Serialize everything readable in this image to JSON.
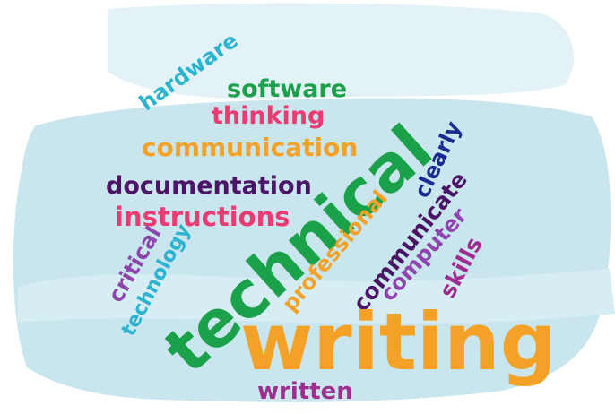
{
  "colors": {
    "wash": "#c9e6ee",
    "wash_light": "#e3f2f6",
    "teal": "#2bb3cf",
    "green": "#1ba149",
    "pink": "#ea3c73",
    "orange": "#f4a227",
    "purple": "#4b1466",
    "violet": "#8e44ad",
    "navy": "#1d2a91",
    "magenta": "#a02c8f"
  },
  "words": {
    "hardware": "hardware",
    "software": "software",
    "thinking": "thinking",
    "communication": "communication",
    "documentation": "documentation",
    "instructions": "instructions",
    "critical": "critical",
    "technology": "technology",
    "technical": "technical",
    "writing": "writing",
    "professional": "professional",
    "clearly": "clearly",
    "communicate": "communicate",
    "computer": "computer",
    "skills": "skills",
    "written": "written"
  }
}
